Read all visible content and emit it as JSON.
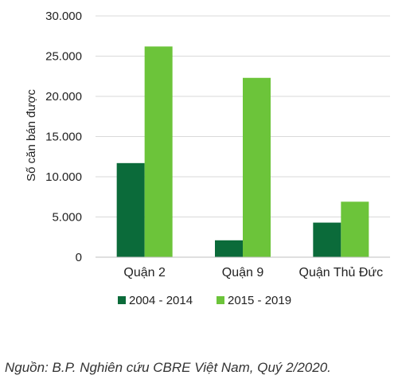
{
  "chart_data": {
    "type": "bar",
    "title": "",
    "xlabel": "",
    "ylabel": "Số căn bán được",
    "categories": [
      "Quận 2",
      "Quận 9",
      "Quận Thủ Đức"
    ],
    "series": [
      {
        "name": "2004 - 2014",
        "color": "#0b6b3a",
        "values": [
          11700,
          2100,
          4300
        ]
      },
      {
        "name": "2015 - 2019",
        "color": "#6cc43a",
        "values": [
          26200,
          22300,
          6900
        ]
      }
    ],
    "ylim": [
      0,
      30000
    ],
    "yticks": [
      0,
      5000,
      10000,
      15000,
      20000,
      25000,
      30000
    ],
    "ytick_labels": [
      "0",
      "5.000",
      "10.000",
      "15.000",
      "20.000",
      "25.000",
      "30.000"
    ],
    "grid": true,
    "legend_position": "bottom"
  },
  "caption": "Nguồn: B.P. Nghiên cứu CBRE Việt Nam, Quý 2/2020."
}
